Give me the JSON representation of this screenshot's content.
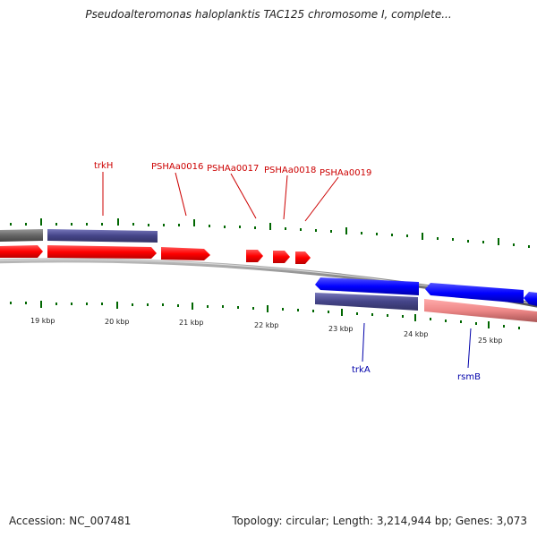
{
  "title": "Pseudoalteromonas haloplanktis TAC125 chromosome I, complete...",
  "footer": {
    "accession": "Accession: NC_007481",
    "summary": "Topology: circular; Length: 3,214,944 bp; Genes: 3,073"
  },
  "colors": {
    "forward_cds": "#ff0000",
    "reverse_cds": "#0000ff",
    "forward_gene": "#4a4a8a",
    "reverse_gene": "#555599",
    "rrna_like": "#ee8888",
    "backbone": "#888888",
    "tick": "#006600",
    "label_forward": "#cc0000",
    "label_reverse": "#0000aa"
  },
  "scale_labels": [
    "19 kbp",
    "20 kbp",
    "21 kbp",
    "22 kbp",
    "23 kbp",
    "24 kbp",
    "25 kbp"
  ],
  "forward_labels": [
    "trkH",
    "PSHAa0016",
    "PSHAa0017",
    "PSHAa0018",
    "PSHAa0019"
  ],
  "reverse_labels": [
    "trkA",
    "rsmB"
  ]
}
